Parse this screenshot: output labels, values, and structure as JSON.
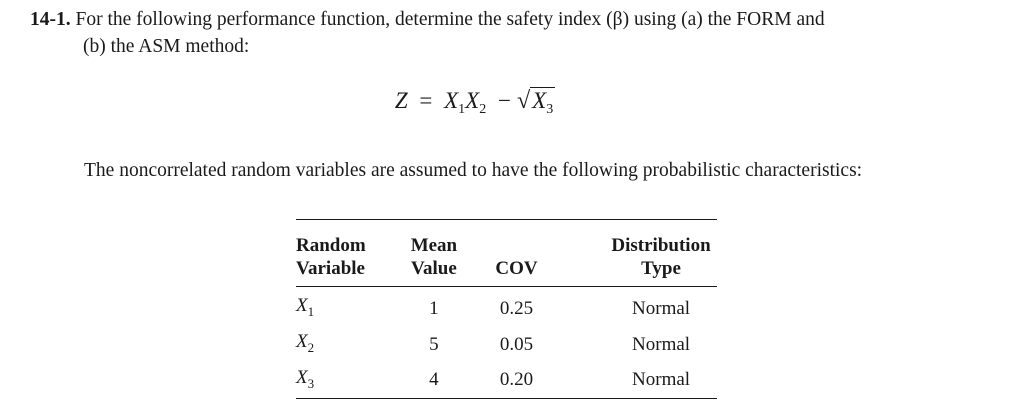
{
  "problem": {
    "number": "14-1.",
    "text_line1": "For the following performance function, determine the safety index (β) using (a) the FORM and",
    "text_line2": "(b) the ASM method:"
  },
  "equation": {
    "lhs": "Z",
    "equals": "=",
    "x1": "X",
    "x1_sub": "1",
    "x2": "X",
    "x2_sub": "2",
    "minus": "−",
    "sqrt_symbol": "√",
    "x3": "X",
    "x3_sub": "3"
  },
  "note": "The noncorrelated random variables are assumed to have the following probabilistic characteristics:",
  "table": {
    "headers": {
      "col1_line1": "Random",
      "col1_line2": "Variable",
      "col2_line1": "Mean",
      "col2_line2": "Value",
      "col3": "COV",
      "col4_line1": "Distribution",
      "col4_line2": "Type"
    },
    "rows": [
      {
        "var": "X",
        "sub": "1",
        "mean": "1",
        "cov": "0.25",
        "type": "Normal"
      },
      {
        "var": "X",
        "sub": "2",
        "mean": "5",
        "cov": "0.05",
        "type": "Normal"
      },
      {
        "var": "X",
        "sub": "3",
        "mean": "4",
        "cov": "0.20",
        "type": "Normal"
      }
    ]
  }
}
